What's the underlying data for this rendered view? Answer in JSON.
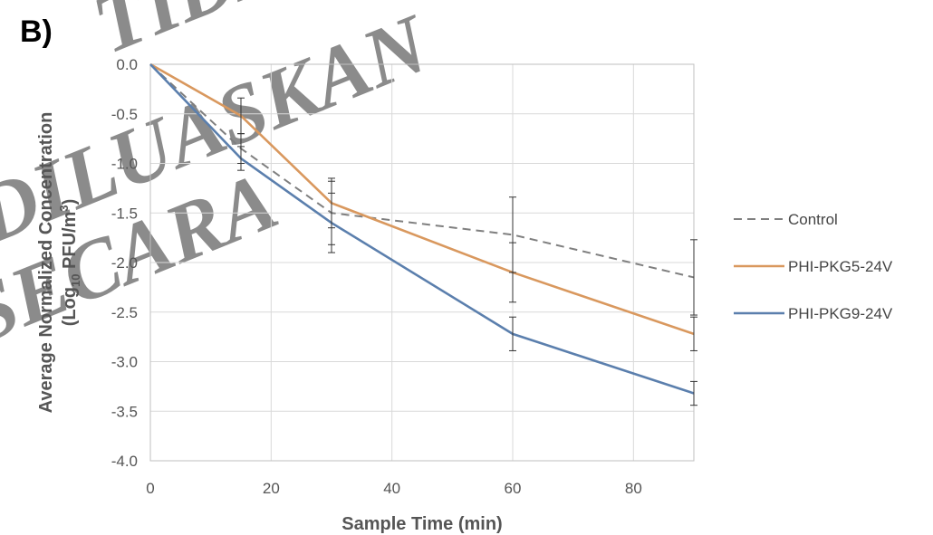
{
  "panel_label": "B)",
  "watermark": [
    "TIDAK",
    "DILUASKAN",
    "SECARA"
  ],
  "colors": {
    "control": "#7f7f7f",
    "phi_pkg5": "#d9985e",
    "phi_pkg9": "#5b7fad",
    "watermark": "#e8898f",
    "error_bar": "#333333",
    "grid": "#d9d9d9",
    "axis_text": "#555555"
  },
  "chart_data": {
    "type": "line",
    "title": "",
    "xlabel": "Sample Time (min)",
    "ylabel_line1": "Average Normalized Concentration",
    "ylabel_line2_prefix": "(Log",
    "ylabel_line2_sub": "10",
    "ylabel_line2_mid": " PFU/m",
    "ylabel_line2_sup": "3",
    "ylabel_line2_suffix": ")",
    "xlim": [
      0,
      90
    ],
    "ylim": [
      -4.0,
      0.0
    ],
    "xticks": [
      0,
      20,
      40,
      60,
      80
    ],
    "xtick_labels": [
      "0",
      "20",
      "40",
      "60",
      "80"
    ],
    "yticks": [
      0.0,
      -0.5,
      -1.0,
      -1.5,
      -2.0,
      -2.5,
      -3.0,
      -3.5,
      -4.0
    ],
    "ytick_labels": [
      "0.0",
      "-0.5",
      "-1.0",
      "-1.5",
      "-2.0",
      "-2.5",
      "-3.0",
      "-3.5",
      "-4.0"
    ],
    "grid": true,
    "legend_position": "right",
    "series": [
      {
        "name": "Control",
        "style": "dashed",
        "color_key": "control",
        "x": [
          0,
          15,
          30,
          60,
          90
        ],
        "y": [
          0.0,
          -0.85,
          -1.5,
          -1.72,
          -2.15
        ],
        "err": [
          0.0,
          0.15,
          0.32,
          0.38,
          0.38
        ]
      },
      {
        "name": "PHI-PKG5-24V",
        "style": "solid",
        "color_key": "phi_pkg5",
        "x": [
          0,
          15,
          30,
          60,
          90
        ],
        "y": [
          0.0,
          -0.52,
          -1.4,
          -2.1,
          -2.72
        ],
        "err": [
          0.0,
          0.18,
          0.25,
          0.3,
          0.17
        ]
      },
      {
        "name": "PHI-PKG9-24V",
        "style": "solid",
        "color_key": "phi_pkg9",
        "x": [
          0,
          15,
          30,
          60,
          90
        ],
        "y": [
          0.0,
          -0.95,
          -1.6,
          -2.72,
          -3.32
        ],
        "err": [
          0.0,
          0.12,
          0.3,
          0.17,
          0.12
        ]
      }
    ]
  }
}
